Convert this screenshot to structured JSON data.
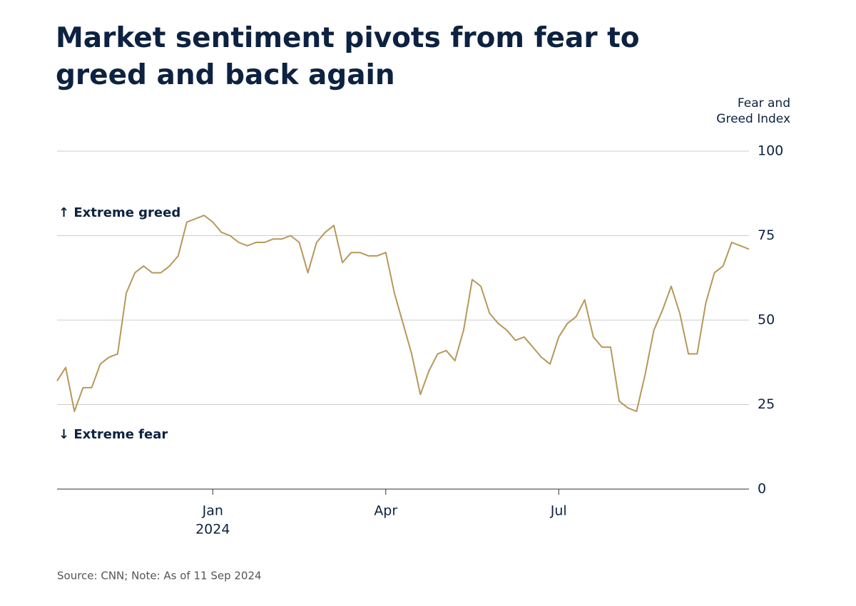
{
  "chart_data": {
    "type": "line",
    "title": "Market sentiment pivots from fear to greed and back again",
    "y_axis_title": "Fear and Greed Index",
    "annotations": [
      "↑ Extreme greed",
      "↓ Extreme fear"
    ],
    "source": "Source: CNN; Note: As of 11 Sep 2024",
    "color": "#b8975a",
    "values": [
      32,
      36,
      23,
      30,
      30,
      37,
      39,
      40,
      58,
      64,
      66,
      64,
      64,
      66,
      69,
      79,
      80,
      81,
      79,
      76,
      75,
      73,
      72,
      73,
      73,
      74,
      74,
      75,
      73,
      64,
      73,
      76,
      78,
      67,
      70,
      70,
      69,
      69,
      70,
      58,
      49,
      40,
      28,
      35,
      40,
      41,
      38,
      47,
      62,
      60,
      52,
      49,
      47,
      44,
      45,
      42,
      39,
      37,
      45,
      49,
      51,
      56,
      45,
      42,
      42,
      26,
      24,
      23,
      34,
      47,
      53,
      60,
      52,
      40,
      40,
      55,
      64,
      66,
      73,
      72,
      71
    ],
    "xlim": [
      0,
      80
    ],
    "xticks": [
      {
        "value": 18,
        "label": "Jan"
      },
      {
        "value": 38,
        "label": "Apr"
      },
      {
        "value": 58,
        "label": "Jul"
      }
    ],
    "x_year_label": "2024",
    "ylim": [
      0,
      100
    ],
    "yticks": [
      0,
      25,
      50,
      75,
      100
    ],
    "grid": true
  }
}
